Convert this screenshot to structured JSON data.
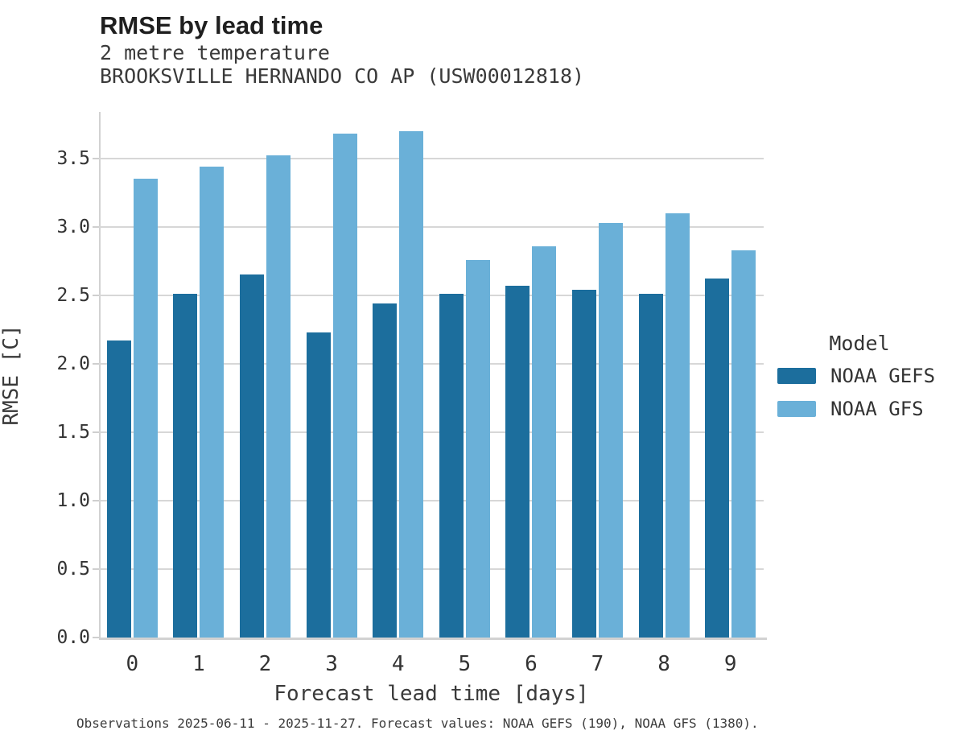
{
  "header": {
    "title": "RMSE by lead time",
    "subtitle": "2 metre temperature",
    "station": "BROOKSVILLE HERNANDO CO AP (USW00012818)"
  },
  "axes": {
    "xlabel": "Forecast lead time [days]",
    "ylabel": "RMSE [C]"
  },
  "legend": {
    "title": "Model",
    "items": [
      {
        "label": "NOAA GEFS",
        "color": "#1c6e9d"
      },
      {
        "label": "NOAA GFS",
        "color": "#6ab0d8"
      }
    ]
  },
  "caption": "Observations 2025-06-11 - 2025-11-27. Forecast values: NOAA GEFS (190), NOAA GFS (1380).",
  "chart_data": {
    "type": "bar",
    "title": "RMSE by lead time",
    "subtitle": [
      "2 metre temperature",
      "BROOKSVILLE HERNANDO CO AP (USW00012818)"
    ],
    "categories": [
      "0",
      "1",
      "2",
      "3",
      "4",
      "5",
      "6",
      "7",
      "8",
      "9"
    ],
    "series": [
      {
        "name": "NOAA GEFS",
        "color": "#1c6e9d",
        "values": [
          2.17,
          2.51,
          2.65,
          2.23,
          2.44,
          2.51,
          2.57,
          2.54,
          2.51,
          2.62
        ]
      },
      {
        "name": "NOAA GFS",
        "color": "#6ab0d8",
        "values": [
          3.35,
          3.44,
          3.52,
          3.68,
          3.7,
          2.76,
          2.86,
          3.03,
          3.1,
          2.83
        ]
      }
    ],
    "xlabel": "Forecast lead time [days]",
    "ylabel": "RMSE [C]",
    "ylim": [
      0,
      3.84
    ],
    "yticks": [
      0.0,
      0.5,
      1.0,
      1.5,
      2.0,
      2.5,
      3.0,
      3.5
    ],
    "grid": true,
    "legend_position": "center-right"
  }
}
